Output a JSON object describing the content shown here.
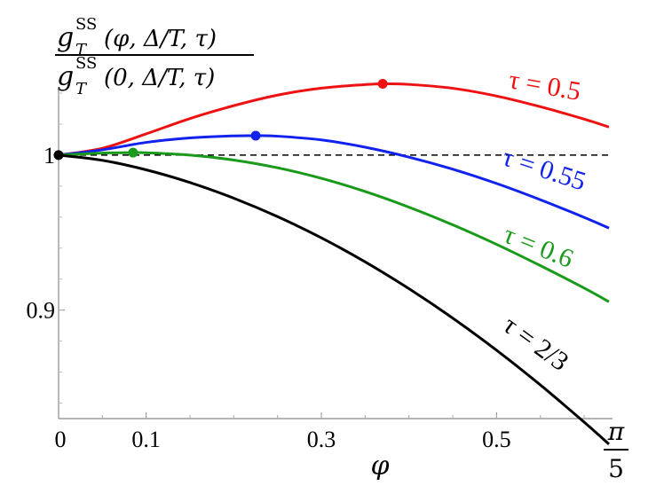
{
  "chart_data": {
    "type": "line",
    "ylabel_numerator": {
      "g": "g",
      "sup": "SS",
      "sub": "T",
      "args": "(φ, Δ/T, τ)"
    },
    "ylabel_denominator": {
      "g": "g",
      "sup": "SS",
      "sub": "T",
      "args": "(0, Δ/T, τ)"
    },
    "xlabel": "φ",
    "xlim": [
      0,
      0.6283
    ],
    "ylim": [
      0.83,
      1.052
    ],
    "x_ticks": [
      {
        "value": 0,
        "label": "0"
      },
      {
        "value": 0.1,
        "label": "0.1"
      },
      {
        "value": 0.3,
        "label": "0.3"
      },
      {
        "value": 0.5,
        "label": "0.5"
      }
    ],
    "x_end_label": {
      "numerator": "π",
      "denominator": "5"
    },
    "y_ticks": [
      {
        "value": 1.0,
        "label": "1"
      },
      {
        "value": 0.9,
        "label": "0.9"
      }
    ],
    "reference_line": {
      "y": 1.0,
      "style": "dashed",
      "color": "#000000"
    },
    "series": [
      {
        "name": "τ = 0.5",
        "color": "#ee1111",
        "x": [
          0,
          0.05,
          0.1,
          0.15,
          0.2,
          0.25,
          0.3,
          0.35,
          0.37,
          0.4,
          0.45,
          0.5,
          0.55,
          0.6,
          0.6283
        ],
        "y": [
          1.0,
          1.0044,
          1.0137,
          1.0236,
          1.0319,
          1.0387,
          1.0432,
          1.0455,
          1.046,
          1.0456,
          1.0431,
          1.0381,
          1.0312,
          1.0232,
          1.0181
        ],
        "marker": {
          "x": 0.37,
          "y": 1.046
        }
      },
      {
        "name": "τ = 0.55",
        "color": "#1122ee",
        "x": [
          0,
          0.05,
          0.1,
          0.15,
          0.2,
          0.225,
          0.25,
          0.3,
          0.35,
          0.4,
          0.45,
          0.5,
          0.55,
          0.6,
          0.6283
        ],
        "y": [
          1.0,
          1.0034,
          1.0082,
          1.0111,
          1.0124,
          1.0125,
          1.0122,
          1.0098,
          1.0051,
          0.9987,
          0.9909,
          0.9817,
          0.9712,
          0.9598,
          0.9529
        ],
        "marker": {
          "x": 0.225,
          "y": 1.0125
        }
      },
      {
        "name": "τ = 0.6",
        "color": "#1a9a1a",
        "x": [
          0,
          0.05,
          0.085,
          0.1,
          0.15,
          0.2,
          0.25,
          0.3,
          0.35,
          0.4,
          0.45,
          0.5,
          0.55,
          0.6,
          0.6283
        ],
        "y": [
          1.0,
          1.0013,
          1.0016,
          1.0015,
          1.0,
          0.9968,
          0.9918,
          0.985,
          0.9765,
          0.9664,
          0.955,
          0.9424,
          0.9287,
          0.9142,
          0.9054
        ],
        "marker": {
          "x": 0.085,
          "y": 1.0016
        }
      },
      {
        "name": "τ = 2/3",
        "color": "#000000",
        "x": [
          0,
          0.05,
          0.1,
          0.15,
          0.2,
          0.25,
          0.3,
          0.35,
          0.4,
          0.45,
          0.5,
          0.55,
          0.6,
          0.6283
        ],
        "y": [
          1.0,
          0.9966,
          0.9905,
          0.9823,
          0.9722,
          0.9603,
          0.9466,
          0.9311,
          0.9138,
          0.8948,
          0.8741,
          0.8517,
          0.8277,
          0.8135
        ],
        "marker": {
          "x": 0,
          "y": 1.0
        }
      }
    ],
    "labels": [
      {
        "series": 0,
        "text": "τ = 0.5"
      },
      {
        "series": 1,
        "text": "τ = 0.55"
      },
      {
        "series": 2,
        "text": "τ = 0.6"
      },
      {
        "series": 3,
        "text": "τ = 2/3"
      }
    ]
  }
}
